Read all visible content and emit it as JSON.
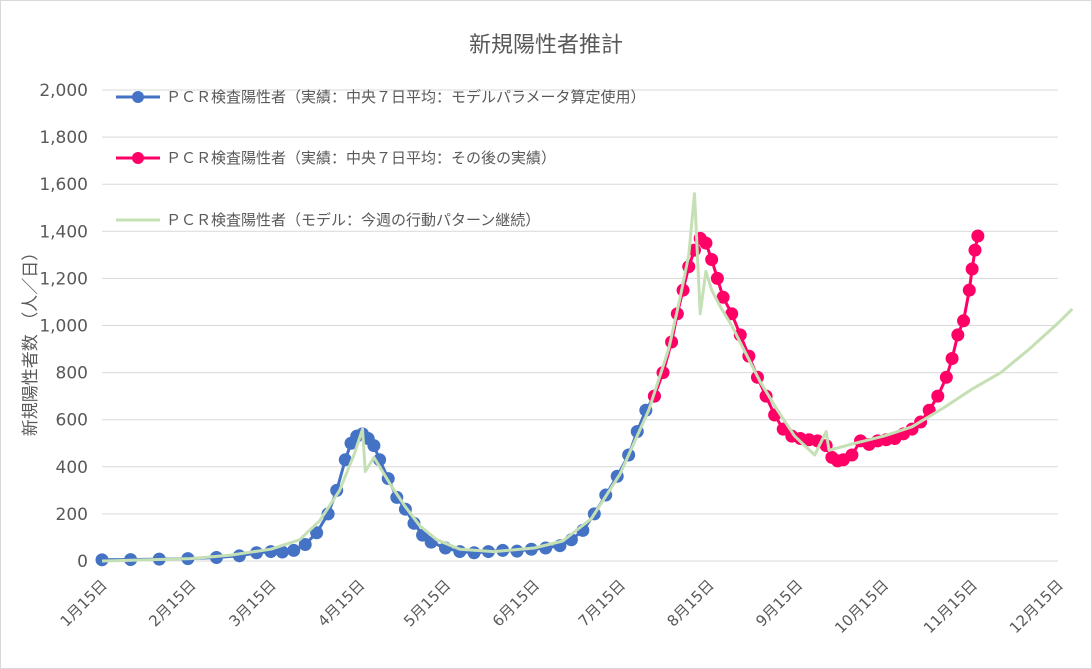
{
  "chart_data": {
    "type": "line",
    "title": "新規陽性者推計",
    "ylabel": "新規陽性者数 （人／日）",
    "xlabel": "",
    "ylim": [
      0,
      2000
    ],
    "yticks": [
      "0",
      "200",
      "400",
      "600",
      "800",
      "1,000",
      "1,200",
      "1,400",
      "1,600",
      "1,800",
      "2,000"
    ],
    "ytick_values": [
      0,
      200,
      400,
      600,
      800,
      1000,
      1200,
      1400,
      1600,
      1800,
      2000
    ],
    "xticks": [
      "1月15日",
      "2月15日",
      "3月15日",
      "4月15日",
      "5月15日",
      "6月15日",
      "7月15日",
      "8月15日",
      "9月15日",
      "10月15日",
      "11月15日",
      "12月15日"
    ],
    "x_domain": [
      "1月15日",
      "12月15日"
    ],
    "grid": true,
    "legend_position": "top-left",
    "series": [
      {
        "name": "ＰＣＲ検査陽性者（実績：中央７日平均：モデルパラメータ算定使用）",
        "color": "#4472c4",
        "marker": "circle",
        "points": [
          [
            "1月15日",
            5
          ],
          [
            "1月25日",
            6
          ],
          [
            "2月4日",
            8
          ],
          [
            "2月14日",
            10
          ],
          [
            "2月24日",
            15
          ],
          [
            "3月4日",
            22
          ],
          [
            "3月10日",
            35
          ],
          [
            "3月15日",
            40
          ],
          [
            "3月19日",
            38
          ],
          [
            "3月23日",
            45
          ],
          [
            "3月27日",
            70
          ],
          [
            "3月31日",
            120
          ],
          [
            "4月4日",
            200
          ],
          [
            "4月7日",
            300
          ],
          [
            "4月10日",
            430
          ],
          [
            "4月12日",
            500
          ],
          [
            "4月14日",
            530
          ],
          [
            "4月16日",
            540
          ],
          [
            "4月18日",
            520
          ],
          [
            "4月20日",
            490
          ],
          [
            "4月22日",
            430
          ],
          [
            "4月25日",
            350
          ],
          [
            "4月28日",
            270
          ],
          [
            "5月1日",
            220
          ],
          [
            "5月4日",
            160
          ],
          [
            "5月7日",
            110
          ],
          [
            "5月10日",
            80
          ],
          [
            "5月15日",
            55
          ],
          [
            "5月20日",
            40
          ],
          [
            "5月25日",
            35
          ],
          [
            "5月30日",
            40
          ],
          [
            "6月4日",
            45
          ],
          [
            "6月9日",
            42
          ],
          [
            "6月14日",
            50
          ],
          [
            "6月19日",
            55
          ],
          [
            "6月24日",
            65
          ],
          [
            "6月28日",
            90
          ],
          [
            "7月2日",
            130
          ],
          [
            "7月6日",
            200
          ],
          [
            "7月10日",
            280
          ],
          [
            "7月14日",
            360
          ],
          [
            "7月18日",
            450
          ],
          [
            "7月21日",
            550
          ],
          [
            "7月24日",
            640
          ],
          [
            "7月27日",
            700
          ]
        ]
      },
      {
        "name": "ＰＣＲ検査陽性者（実績：中央７日平均：その後の実績）",
        "color": "#ff0066",
        "marker": "circle",
        "points": [
          [
            "7月27日",
            700
          ],
          [
            "7月30日",
            800
          ],
          [
            "8月2日",
            930
          ],
          [
            "8月4日",
            1050
          ],
          [
            "8月6日",
            1150
          ],
          [
            "8月8日",
            1250
          ],
          [
            "8月10日",
            1320
          ],
          [
            "8月12日",
            1370
          ],
          [
            "8月14日",
            1350
          ],
          [
            "8月16日",
            1280
          ],
          [
            "8月18日",
            1200
          ],
          [
            "8月20日",
            1120
          ],
          [
            "8月23日",
            1050
          ],
          [
            "8月26日",
            960
          ],
          [
            "8月29日",
            870
          ],
          [
            "9月1日",
            780
          ],
          [
            "9月4日",
            700
          ],
          [
            "9月7日",
            620
          ],
          [
            "9月10日",
            560
          ],
          [
            "9月13日",
            530
          ],
          [
            "9月16日",
            520
          ],
          [
            "9月19日",
            515
          ],
          [
            "9月22日",
            510
          ],
          [
            "9月25日",
            490
          ],
          [
            "9月27日",
            440
          ],
          [
            "9月29日",
            425
          ],
          [
            "10月1日",
            430
          ],
          [
            "10月4日",
            450
          ],
          [
            "10月7日",
            510
          ],
          [
            "10月10日",
            495
          ],
          [
            "10月13日",
            510
          ],
          [
            "10月16日",
            515
          ],
          [
            "10月19日",
            520
          ],
          [
            "10月22日",
            540
          ],
          [
            "10月25日",
            560
          ],
          [
            "10月28日",
            590
          ],
          [
            "10月31日",
            640
          ],
          [
            "11月3日",
            700
          ],
          [
            "11月6日",
            780
          ],
          [
            "11月8日",
            860
          ],
          [
            "11月10日",
            960
          ],
          [
            "11月12日",
            1020
          ],
          [
            "11月14日",
            1150
          ],
          [
            "11月15日",
            1240
          ],
          [
            "11月16日",
            1320
          ],
          [
            "11月17日",
            1380
          ]
        ]
      },
      {
        "name": "ＰＣＲ検査陽性者（モデル：今週の行動パターン継続）",
        "color": "#c5e0b4",
        "marker": "none",
        "points": [
          [
            "1月15日",
            0
          ],
          [
            "2月1日",
            5
          ],
          [
            "2月15日",
            10
          ],
          [
            "3月1日",
            25
          ],
          [
            "3月15日",
            50
          ],
          [
            "3月25日",
            90
          ],
          [
            "4月1日",
            170
          ],
          [
            "4月8日",
            300
          ],
          [
            "4月13日",
            450
          ],
          [
            "4月16日",
            560
          ],
          [
            "4月17日",
            380
          ],
          [
            "4月20日",
            440
          ],
          [
            "4月23日",
            380
          ],
          [
            "4月26日",
            320
          ],
          [
            "5月1日",
            230
          ],
          [
            "5月6日",
            150
          ],
          [
            "5月12日",
            90
          ],
          [
            "5月20日",
            50
          ],
          [
            "6月1日",
            40
          ],
          [
            "6月15日",
            55
          ],
          [
            "6月25日",
            85
          ],
          [
            "7月5日",
            180
          ],
          [
            "7月15日",
            370
          ],
          [
            "7月25日",
            640
          ],
          [
            "8月1日",
            900
          ],
          [
            "8月5日",
            1120
          ],
          [
            "8月8日",
            1300
          ],
          [
            "8月10日",
            1560
          ],
          [
            "8月12日",
            1050
          ],
          [
            "8月14日",
            1230
          ],
          [
            "8月16日",
            1150
          ],
          [
            "8月19日",
            1080
          ],
          [
            "8月23日",
            1000
          ],
          [
            "8月28日",
            880
          ],
          [
            "9月2日",
            760
          ],
          [
            "9月8日",
            640
          ],
          [
            "9月14日",
            530
          ],
          [
            "9月21日",
            450
          ],
          [
            "9月25日",
            550
          ],
          [
            "9月26日",
            470
          ],
          [
            "10月5日",
            500
          ],
          [
            "10月15日",
            530
          ],
          [
            "10月25日",
            570
          ],
          [
            "11月5日",
            650
          ],
          [
            "11月15日",
            730
          ],
          [
            "11月25日",
            800
          ],
          [
            "12月5日",
            900
          ],
          [
            "12月15日",
            1010
          ],
          [
            "12月20日",
            1070
          ]
        ]
      }
    ]
  }
}
